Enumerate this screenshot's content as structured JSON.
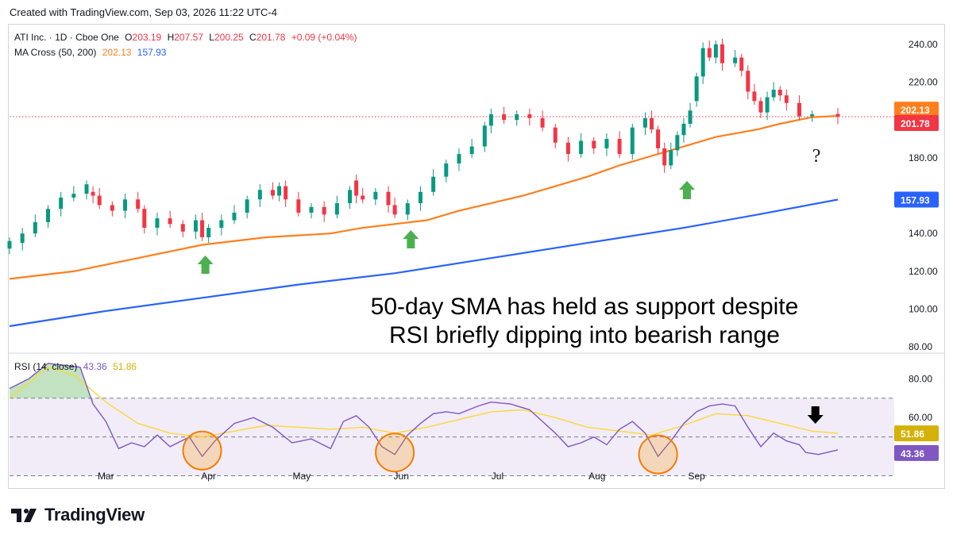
{
  "header": {
    "text": "Created with TradingView.com, Sep 03, 2026 11:22 UTC-4"
  },
  "legend": {
    "symbol": "ATI Inc. · 1D · Cboe One",
    "o_label": "O",
    "o": "203.19",
    "h_label": "H",
    "h": "207.57",
    "l_label": "L",
    "l": "200.25",
    "c_label": "C",
    "c": "201.78",
    "change": "+0.09 (+0.04%)",
    "ma_label": "MA Cross (50, 200)",
    "ma50": "202.13",
    "ma200": "157.93",
    "rsi_label": "RSI (14, close)",
    "rsi": "43.36",
    "rsi_ma": "51.86"
  },
  "annotation": {
    "line1": "50-day SMA has held as support despite",
    "line2": "RSI briefly dipping into bearish range"
  },
  "question_mark": "?",
  "footer": {
    "brand": "TradingView"
  },
  "colors": {
    "up": "#089981",
    "down": "#f23645",
    "ma50": "#ff7f1e",
    "ma200": "#2962ff",
    "rsi": "#7e57c2",
    "rsi_ma": "#fdd835",
    "arrow": "#4caf50"
  },
  "chart_data": [
    {
      "type": "candlestick",
      "title": "ATI Inc. · 1D · Cboe One",
      "x_tick_labels": [
        "Mar",
        "Apr",
        "May",
        "Jun",
        "Jul",
        "Aug",
        "Sep"
      ],
      "y_tick_labels": [
        "80.00",
        "100.00",
        "120.00",
        "140.00",
        "160.00",
        "180.00",
        "200.00",
        "220.00",
        "240.00"
      ],
      "ylim": [
        78,
        250
      ],
      "last_close_label": "201.78",
      "ma50_label": "202.13",
      "ma200_label": "157.93",
      "series": [
        {
          "name": "MA Cross (50, 200) 50",
          "points": [
            [
              0,
              116
            ],
            [
              20,
              120
            ],
            [
              40,
              127
            ],
            [
              60,
              134
            ],
            [
              80,
              138
            ],
            [
              100,
              140
            ],
            [
              110,
              143
            ],
            [
              120,
              145
            ],
            [
              130,
              147
            ],
            [
              140,
              152
            ],
            [
              160,
              160
            ],
            [
              180,
              170
            ],
            [
              190,
              176
            ],
            [
              200,
              181
            ],
            [
              210,
              186
            ],
            [
              220,
              191
            ],
            [
              233,
              195
            ],
            [
              240,
              198
            ],
            [
              250,
              201.5
            ],
            [
              258,
              202.13
            ]
          ]
        },
        {
          "name": "MA Cross (50, 200) 200",
          "points": [
            [
              0,
              91
            ],
            [
              30,
              99
            ],
            [
              60,
              106
            ],
            [
              90,
              113
            ],
            [
              120,
              119
            ],
            [
              150,
              127
            ],
            [
              180,
              135
            ],
            [
              210,
              143
            ],
            [
              233,
              150
            ],
            [
              258,
              157.93
            ]
          ]
        }
      ],
      "ohlc_approx": [
        [
          0,
          132,
          136
        ],
        [
          4,
          135,
          140
        ],
        [
          8,
          140,
          146
        ],
        [
          12,
          146,
          153
        ],
        [
          16,
          153,
          159
        ],
        [
          20,
          159,
          161
        ],
        [
          24,
          161,
          166
        ],
        [
          26,
          162,
          160
        ],
        [
          28,
          160,
          155
        ],
        [
          32,
          155,
          152
        ],
        [
          36,
          152,
          158
        ],
        [
          40,
          158,
          153
        ],
        [
          42,
          153,
          143
        ],
        [
          46,
          143,
          148
        ],
        [
          50,
          148,
          145
        ],
        [
          54,
          145,
          141
        ],
        [
          58,
          141,
          147
        ],
        [
          60,
          147,
          138
        ],
        [
          62,
          138,
          143
        ],
        [
          66,
          143,
          147
        ],
        [
          70,
          147,
          151
        ],
        [
          74,
          151,
          158
        ],
        [
          78,
          158,
          163
        ],
        [
          82,
          163,
          160
        ],
        [
          84,
          160,
          165
        ],
        [
          86,
          165,
          158
        ],
        [
          90,
          158,
          151
        ],
        [
          94,
          151,
          154
        ],
        [
          98,
          154,
          150
        ],
        [
          102,
          150,
          156
        ],
        [
          106,
          156,
          163
        ],
        [
          108,
          168,
          160
        ],
        [
          110,
          160,
          158
        ],
        [
          114,
          158,
          162
        ],
        [
          118,
          162,
          155
        ],
        [
          120,
          155,
          150
        ],
        [
          124,
          150,
          156
        ],
        [
          128,
          156,
          162
        ],
        [
          132,
          162,
          170
        ],
        [
          136,
          170,
          177
        ],
        [
          140,
          177,
          182
        ],
        [
          144,
          182,
          186
        ],
        [
          148,
          186,
          197
        ],
        [
          150,
          197,
          203
        ],
        [
          154,
          203,
          200
        ],
        [
          158,
          200,
          203
        ],
        [
          162,
          203,
          201
        ],
        [
          166,
          201,
          196
        ],
        [
          170,
          196,
          188
        ],
        [
          174,
          188,
          182
        ],
        [
          178,
          182,
          189
        ],
        [
          182,
          189,
          185
        ],
        [
          186,
          185,
          190
        ],
        [
          190,
          190,
          182
        ],
        [
          194,
          182,
          196
        ],
        [
          198,
          196,
          201
        ],
        [
          200,
          201,
          195
        ],
        [
          202,
          195,
          185
        ],
        [
          204,
          185,
          176
        ],
        [
          206,
          176,
          184
        ],
        [
          208,
          184,
          192
        ],
        [
          210,
          192,
          198
        ],
        [
          212,
          198,
          205
        ],
        [
          214,
          210,
          223
        ],
        [
          216,
          223,
          238
        ],
        [
          218,
          238,
          233
        ],
        [
          220,
          233,
          240
        ],
        [
          222,
          240,
          230
        ],
        [
          226,
          230,
          233
        ],
        [
          228,
          233,
          226
        ],
        [
          230,
          226,
          215
        ],
        [
          232,
          215,
          210
        ],
        [
          234,
          210,
          204
        ],
        [
          236,
          204,
          212
        ],
        [
          238,
          212,
          216
        ],
        [
          240,
          216,
          213
        ],
        [
          242,
          213,
          209
        ],
        [
          246,
          209,
          202
        ],
        [
          250,
          202,
          203
        ],
        [
          258,
          203.19,
          201.78
        ]
      ]
    },
    {
      "type": "line",
      "title": "RSI (14, close)",
      "y_tick_labels": [
        "40.00",
        "60.00",
        "80.00"
      ],
      "ylim": [
        38,
        92
      ],
      "guide_lines": [
        30,
        50,
        70
      ],
      "series": [
        {
          "name": "RSI (14, close)",
          "points": [
            [
              0,
              75
            ],
            [
              6,
              80
            ],
            [
              12,
              88
            ],
            [
              22,
              86
            ],
            [
              26,
              67
            ],
            [
              30,
              58
            ],
            [
              34,
              44
            ],
            [
              38,
              47
            ],
            [
              42,
              45
            ],
            [
              46,
              51
            ],
            [
              50,
              45
            ],
            [
              56,
              50
            ],
            [
              60,
              40
            ],
            [
              64,
              48
            ],
            [
              70,
              57
            ],
            [
              76,
              60
            ],
            [
              82,
              55
            ],
            [
              88,
              47
            ],
            [
              94,
              49
            ],
            [
              100,
              44
            ],
            [
              104,
              58
            ],
            [
              108,
              61
            ],
            [
              112,
              55
            ],
            [
              116,
              45
            ],
            [
              120,
              41
            ],
            [
              124,
              51
            ],
            [
              128,
              57
            ],
            [
              132,
              62
            ],
            [
              136,
              63
            ],
            [
              140,
              62
            ],
            [
              146,
              66
            ],
            [
              150,
              68
            ],
            [
              156,
              67
            ],
            [
              162,
              64
            ],
            [
              166,
              58
            ],
            [
              170,
              52
            ],
            [
              174,
              45
            ],
            [
              178,
              47
            ],
            [
              182,
              50
            ],
            [
              186,
              46
            ],
            [
              190,
              54
            ],
            [
              194,
              58
            ],
            [
              198,
              52
            ],
            [
              202,
              40
            ],
            [
              206,
              48
            ],
            [
              210,
              57
            ],
            [
              214,
              63
            ],
            [
              218,
              66
            ],
            [
              222,
              67
            ],
            [
              226,
              66
            ],
            [
              230,
              55
            ],
            [
              234,
              45
            ],
            [
              238,
              52
            ],
            [
              242,
              48
            ],
            [
              246,
              46
            ],
            [
              248,
              42
            ],
            [
              252,
              41
            ],
            [
              258,
              43.36
            ]
          ]
        },
        {
          "name": "RSI MA",
          "points": [
            [
              0,
              70
            ],
            [
              12,
              86
            ],
            [
              20,
              82
            ],
            [
              30,
              68
            ],
            [
              40,
              57
            ],
            [
              50,
              52
            ],
            [
              60,
              50
            ],
            [
              70,
              53
            ],
            [
              80,
              56
            ],
            [
              90,
              55
            ],
            [
              100,
              54
            ],
            [
              110,
              55
            ],
            [
              120,
              52
            ],
            [
              130,
              55
            ],
            [
              140,
              59
            ],
            [
              150,
              63
            ],
            [
              160,
              64
            ],
            [
              170,
              60
            ],
            [
              180,
              55
            ],
            [
              190,
              53
            ],
            [
              200,
              51
            ],
            [
              210,
              56
            ],
            [
              220,
              62
            ],
            [
              230,
              61
            ],
            [
              240,
              57
            ],
            [
              250,
              53
            ],
            [
              258,
              51.86
            ]
          ]
        }
      ],
      "last_rsi_label": "43.36",
      "last_rsi_ma_label": "51.86"
    }
  ]
}
